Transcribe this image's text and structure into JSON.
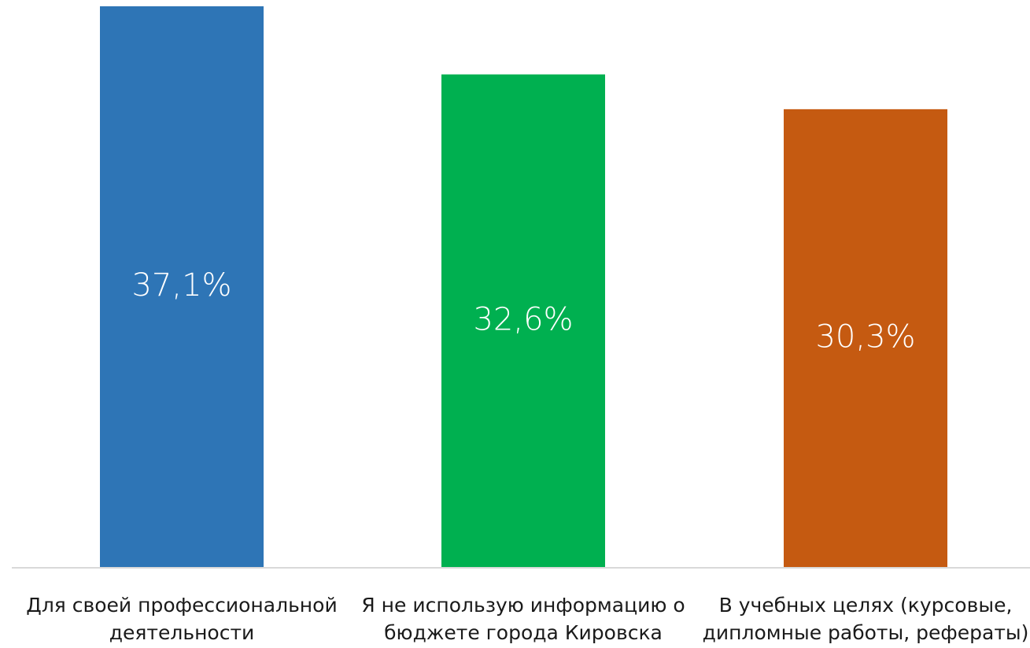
{
  "chart_data": {
    "type": "bar",
    "categories": [
      [
        "Для своей профессиональной",
        "деятельности"
      ],
      [
        "Я не использую информацию о",
        "бюджете города Кировска"
      ],
      [
        "В учебных целях (курсовые,",
        "дипломные работы, рефераты)"
      ]
    ],
    "values": [
      37.1,
      32.6,
      30.3
    ],
    "data_labels": [
      "37,1%",
      "32,6%",
      "30,3%"
    ],
    "colors": [
      "#2E75B6",
      "#00B050",
      "#C55A11"
    ],
    "title": "",
    "xlabel": "",
    "ylabel": "",
    "ylim": [
      0,
      37.1
    ],
    "grid": false,
    "legend": "none"
  }
}
